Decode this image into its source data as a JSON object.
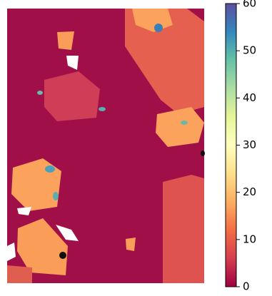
{
  "chart_data": {
    "type": "image",
    "colormap": "Spectral_r",
    "clim": [
      0,
      60
    ],
    "cticks": [
      0,
      10,
      20,
      30,
      40,
      50,
      60
    ]
  }
}
